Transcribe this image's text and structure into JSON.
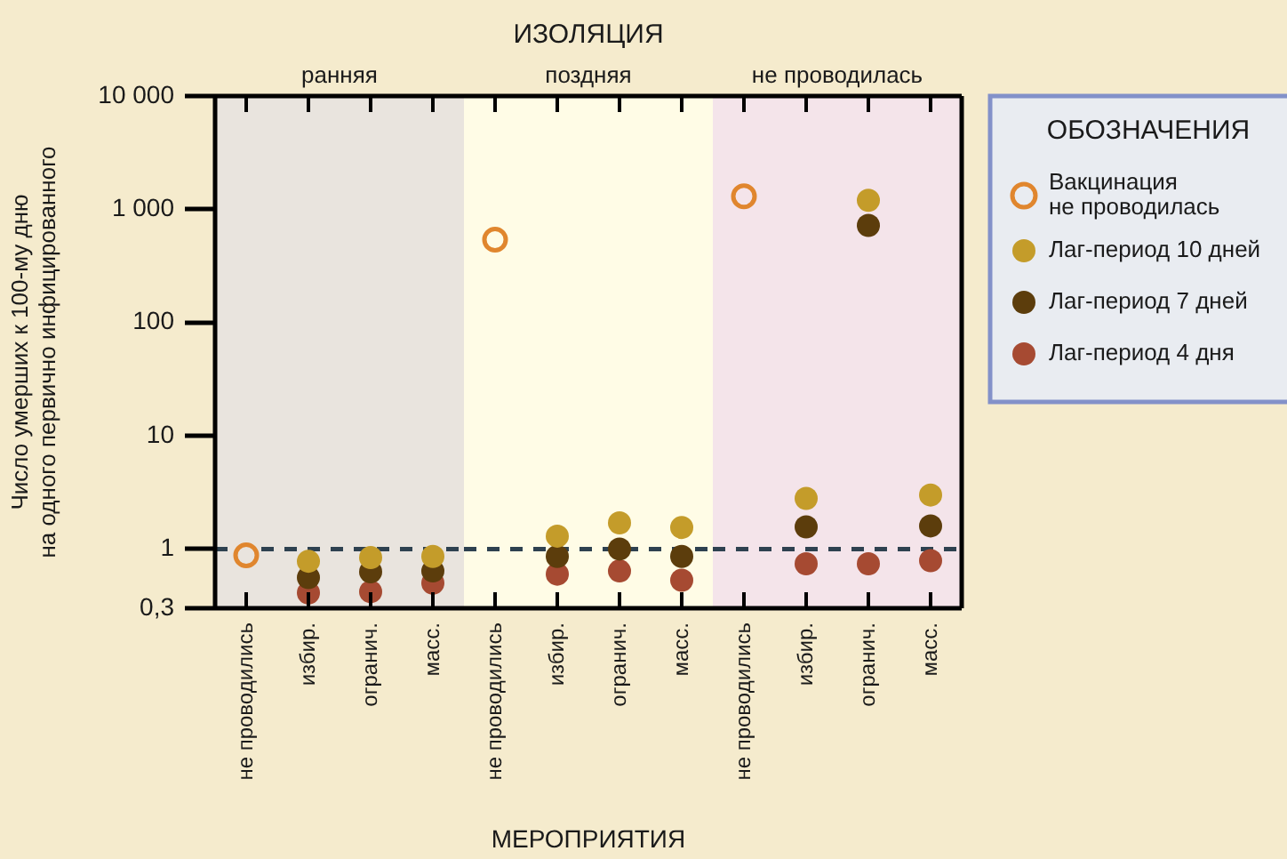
{
  "chart_data": [
    {
      "type": "scatter",
      "ylabel": "Число умерших к 100-му дню\nна одного первично инфицированного",
      "categories": [
        "не проводились",
        "избир.",
        "огранич.",
        "масс."
      ],
      "series": [
        {
          "color": "#e0862e",
          "values": [
            0.88,
            null,
            null,
            null
          ]
        },
        {
          "color": "#c49c2a",
          "values": [
            null,
            0.78,
            0.84,
            0.86
          ]
        },
        {
          "color": "#5c3d0c",
          "values": [
            null,
            0.56,
            0.63,
            0.64
          ]
        },
        {
          "color": "#a64a32",
          "values": [
            null,
            0.41,
            0.42,
            0.5
          ]
        }
      ],
      "ylim": [
        0.3,
        10000
      ],
      "yticks": [
        {
          "value": 0.3,
          "label": "0,3"
        },
        1,
        10,
        100,
        {
          "value": 1000,
          "label": "1 000"
        },
        {
          "value": 10000,
          "label": "10 000"
        }
      ],
      "log": true,
      "grid": false,
      "marker": "circle",
      "ref_lines": [
        {
          "axis": "y",
          "value": 1,
          "color": "#2e4150",
          "line_style": "dashed"
        }
      ],
      "bands": [
        {
          "axis": "x",
          "from": "не проводились",
          "to": "масс.",
          "label": "ранняя",
          "color": "#e9e4de"
        }
      ]
    },
    {
      "type": "scatter",
      "title": "ИЗОЛЯЦИЯ",
      "xlabel": "МЕРОПРИЯТИЯ",
      "categories": [
        "не проводились",
        "избир.",
        "огранич.",
        "масс."
      ],
      "series": [
        {
          "color": "#e0862e",
          "values": [
            540,
            null,
            null,
            null
          ]
        },
        {
          "color": "#c49c2a",
          "values": [
            null,
            1.3,
            1.7,
            1.55
          ]
        },
        {
          "color": "#5c3d0c",
          "values": [
            null,
            0.86,
            1.0,
            0.86
          ]
        },
        {
          "color": "#a64a32",
          "values": [
            null,
            0.6,
            0.64,
            0.53
          ]
        }
      ],
      "ylim": [
        0.3,
        10000
      ],
      "log": true,
      "grid": false,
      "marker": "circle",
      "tick_labels": "x",
      "ref_lines": [
        {
          "axis": "y",
          "value": 1,
          "color": "#2e4150",
          "line_style": "dashed"
        }
      ],
      "bands": [
        {
          "axis": "x",
          "from": "не проводились",
          "to": "масс.",
          "label": "поздняя",
          "color": "#fffce6"
        }
      ]
    },
    {
      "type": "scatter",
      "legend_title": "ОБОЗНАЧЕНИЯ",
      "categories": [
        "не проводились",
        "избир.",
        "огранич.",
        "масс."
      ],
      "series": [
        {
          "name": "Вакцинация\nне проводилась",
          "color": "#e0862e",
          "values": [
            1300,
            null,
            null,
            null
          ]
        },
        {
          "name": "Лаг-период 10 дней",
          "color": "#c49c2a",
          "values": [
            null,
            2.8,
            1200,
            3.0
          ]
        },
        {
          "name": "Лаг-период 7 дней",
          "color": "#5c3d0c",
          "values": [
            null,
            1.57,
            720,
            1.6
          ]
        },
        {
          "name": "Лаг-период 4 дня",
          "color": "#a64a32",
          "values": [
            null,
            0.74,
            0.74,
            0.79
          ]
        }
      ],
      "ylim": [
        0.3,
        10000
      ],
      "log": true,
      "grid": false,
      "marker": "circle",
      "tick_labels": "x",
      "legend": "right",
      "ref_lines": [
        {
          "axis": "y",
          "value": 1,
          "color": "#2e4150",
          "line_style": "dashed"
        }
      ],
      "bands": [
        {
          "axis": "x",
          "from": "не проводились",
          "to": "масс.",
          "label": "не проводилась",
          "color": "#f4e4ea"
        }
      ]
    }
  ]
}
